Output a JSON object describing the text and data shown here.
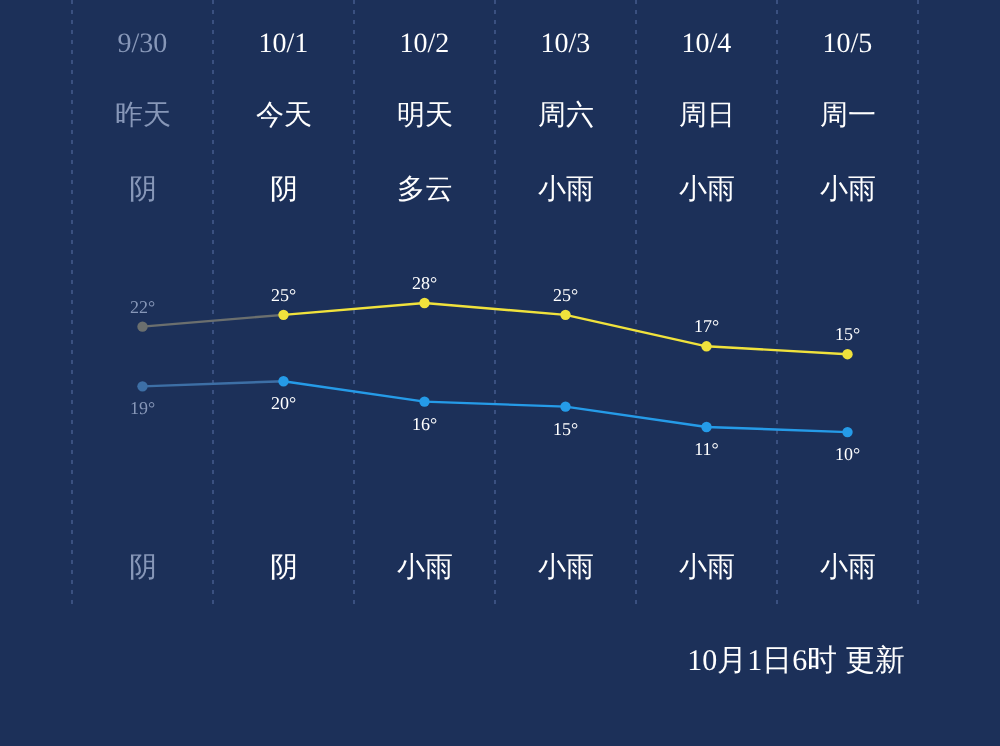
{
  "chart_data": {
    "type": "line",
    "categories": [
      "9/30",
      "10/1",
      "10/2",
      "10/3",
      "10/4",
      "10/5"
    ],
    "series": [
      {
        "color": "#f0e23c",
        "colors": [
          "#6b6f6e",
          "#f0e23c",
          "#f0e23c",
          "#f0e23c",
          "#f0e23c",
          "#f0e23c"
        ],
        "values": [
          22,
          25,
          28,
          25,
          17,
          15
        ],
        "value_labels": [
          "22°",
          "25°",
          "28°",
          "25°",
          "17°",
          "15°"
        ]
      },
      {
        "color": "#259be8",
        "colors": [
          "#3d6fa6",
          "#259be8",
          "#259be8",
          "#259be8",
          "#259be8",
          "#259be8"
        ],
        "axis": "y2",
        "values": [
          19,
          20,
          16,
          15,
          11,
          10
        ],
        "value_labels": [
          "19°",
          "20°",
          "16°",
          "15°",
          "11°",
          "10°"
        ]
      }
    ],
    "ylim": [
      -50,
      105
    ],
    "y2lim": [
      -25,
      95
    ],
    "tick_labels": false,
    "marker": "circle",
    "line_style": "solid",
    "grid": "x",
    "annotations": [
      "昨天",
      "今天",
      "明天",
      "周六",
      "周日",
      "周一",
      "阴",
      "阴",
      "多云",
      "小雨",
      "小雨",
      "小雨",
      "阴",
      "阴",
      "小雨",
      "小雨",
      "小雨",
      "小雨",
      "10月1日6时 更新"
    ]
  }
}
